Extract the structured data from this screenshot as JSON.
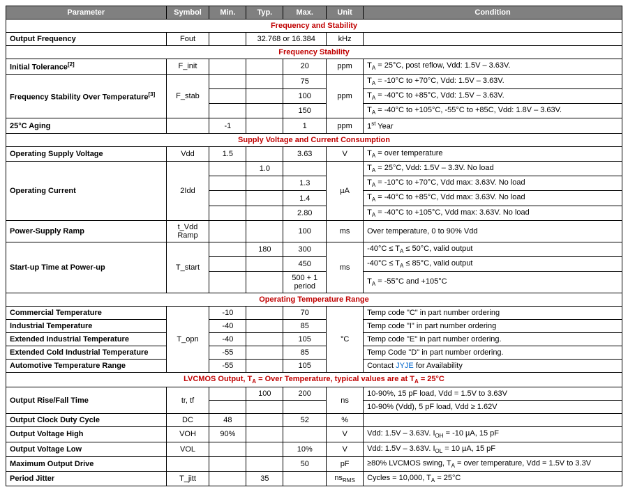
{
  "headers": [
    "Parameter",
    "Symbol",
    "Min.",
    "Typ.",
    "Max.",
    "Unit",
    "Condition"
  ],
  "col_widths": [
    "26%",
    "7%",
    "6%",
    "6%",
    "7%",
    "6%",
    "42%"
  ],
  "sections": [
    {
      "title": "Frequency and Stability",
      "rows": [
        {
          "param": "Output Frequency",
          "symbol": "Fout",
          "min": "",
          "typ": "32.768 or 16.384",
          "typ_span": 2,
          "max": null,
          "unit": "kHz",
          "cond": ""
        }
      ]
    },
    {
      "title": "Frequency Stability",
      "rows": [
        {
          "param": "Initial Tolerance",
          "sup": "[2]",
          "symbol": "F_init",
          "min": "",
          "typ": "",
          "max": "20",
          "unit": "ppm",
          "cond": "T<sub>A</sub> = 25°C, post reflow, Vdd: 1.5V – 3.63V."
        },
        {
          "param": "Frequency Stability Over Temperature",
          "sup": "[3]",
          "rowspan": 3,
          "symbol": "F_stab",
          "symbol_rowspan": 3,
          "min": "",
          "typ": "",
          "max": "75",
          "unit": "ppm",
          "unit_rowspan": 3,
          "cond": "T<sub>A</sub> = -10°C to +70°C, Vdd: 1.5V – 3.63V."
        },
        {
          "min": "",
          "typ": "",
          "max": "100",
          "cond": "T<sub>A</sub> = -40°C to +85°C, Vdd: 1.5V – 3.63V."
        },
        {
          "min": "",
          "typ": "",
          "max": "150",
          "cond": "T<sub>A</sub> = -40°C to +105°C, -55°C to +85C, Vdd: 1.8V – 3.63V."
        },
        {
          "param": "25°C Aging",
          "symbol": "",
          "min": "-1",
          "typ": "",
          "max": "1",
          "unit": "ppm",
          "cond": "1<sup>st</sup> Year"
        }
      ]
    },
    {
      "title": "Supply Voltage and Current Consumption",
      "rows": [
        {
          "param": "Operating Supply Voltage",
          "symbol": "Vdd",
          "min": "1.5",
          "typ": "",
          "max": "3.63",
          "unit": "V",
          "cond": "T<sub>A</sub> = over temperature"
        },
        {
          "param": "Operating Current",
          "rowspan": 4,
          "symbol": "2Idd",
          "symbol_rowspan": 4,
          "min": "",
          "typ": "1.0",
          "max": "",
          "unit": "µA",
          "unit_rowspan": 4,
          "cond": "T<sub>A</sub> = 25°C, Vdd: 1.5V – 3.3V. No load"
        },
        {
          "min": "",
          "typ": "",
          "max": "1.3",
          "cond": "T<sub>A</sub> = -10°C to +70°C, Vdd max: 3.63V. No load"
        },
        {
          "min": "",
          "typ": "",
          "max": "1.4",
          "cond": "T<sub>A</sub> = -40°C to +85°C, Vdd max: 3.63V. No load"
        },
        {
          "min": "",
          "typ": "",
          "max": "2.80",
          "cond": "T<sub>A</sub> = -40°C to +105°C, Vdd max: 3.63V. No load"
        },
        {
          "param": "Power-Supply Ramp",
          "symbol": "t_Vdd Ramp",
          "min": "",
          "typ": "",
          "max": "100",
          "unit": "ms",
          "cond": "Over temperature, 0 to 90% Vdd"
        },
        {
          "param": "Start-up Time at Power-up",
          "rowspan": 3,
          "symbol": "T_start",
          "symbol_rowspan": 3,
          "min": "",
          "typ": "180",
          "max": "300",
          "unit": "ms",
          "unit_rowspan": 3,
          "cond": "-40°C ≤ T<sub>A</sub> ≤ 50°C, valid output"
        },
        {
          "min": "",
          "typ": "",
          "max": "450",
          "cond": "-40°C ≤ T<sub>A</sub> ≤ 85°C, valid output"
        },
        {
          "min": "",
          "typ": "",
          "max": "500 + 1 period",
          "cond": "T<sub>A</sub> = -55°C and +105°C"
        }
      ]
    },
    {
      "title": "Operating Temperature Range",
      "rows": [
        {
          "param": "Commercial Temperature",
          "symbol": "T_opn",
          "symbol_rowspan": 5,
          "min": "-10",
          "typ": "",
          "max": "70",
          "unit": "°C",
          "unit_rowspan": 5,
          "cond": "Temp code \"C\" in part number ordering"
        },
        {
          "param": "Industrial Temperature",
          "min": "-40",
          "typ": "",
          "max": "85",
          "cond": "Temp code \"I\" in part number ordering"
        },
        {
          "param": "Extended Industrial Temperature",
          "min": "-40",
          "typ": "",
          "max": "105",
          "cond": "Temp code \"E\" in part number ordering."
        },
        {
          "param": "Extended Cold Industrial Temperature",
          "min": "-55",
          "typ": "",
          "max": "85",
          "cond": "Temp Code \"D\" in part number ordering."
        },
        {
          "param": "Automotive Temperature Range",
          "min": "-55",
          "typ": "",
          "max": "105",
          "cond": "Contact <span class=\"link\">JYJE</span> for Availability"
        }
      ]
    },
    {
      "title": "LVCMOS Output, T<sub>A</sub> = Over Temperature, typical values are at T<sub>A</sub> = 25°C",
      "rows": [
        {
          "param": "Output Rise/Fall Time",
          "rowspan": 2,
          "symbol": "tr, tf",
          "symbol_rowspan": 2,
          "min": "",
          "typ": "100",
          "max": "200",
          "unit": "ns",
          "unit_rowspan": 2,
          "cond": "10-90%, 15 pF load, Vdd = 1.5V to 3.63V"
        },
        {
          "min": "",
          "typ": "",
          "max": "",
          "cond": "10-90% (Vdd), 5 pF load, Vdd ≥ 1.62V"
        },
        {
          "param": "Output Clock Duty Cycle",
          "symbol": "DC",
          "min": "48",
          "typ": "",
          "max": "52",
          "unit": "%",
          "cond": ""
        },
        {
          "param": "Output Voltage High",
          "symbol": "VOH",
          "min": "90%",
          "typ": "",
          "max": "",
          "unit": "V",
          "cond": "Vdd: 1.5V – 3.63V. I<sub>OH</sub> = -10 µA, 15 pF"
        },
        {
          "param": "Output Voltage Low",
          "symbol": "VOL",
          "min": "",
          "typ": "",
          "max": "10%",
          "unit": "V",
          "cond": "Vdd: 1.5V – 3.63V. I<sub>OL</sub> = 10 µA, 15 pF"
        },
        {
          "param": "Maximum Output Drive",
          "symbol": "",
          "min": "",
          "typ": "",
          "max": "50",
          "unit": "pF",
          "cond": "≥80% LVCMOS swing, T<sub>A</sub> = over temperature, Vdd = 1.5V to 3.3V"
        },
        {
          "param": "Period Jitter",
          "symbol": "T_jitt",
          "min": "",
          "typ": "35",
          "max": "",
          "unit": "ns<sub>RMS</sub>",
          "cond": "Cycles = 10,000, T<sub>A</sub> = 25°C"
        }
      ]
    }
  ]
}
